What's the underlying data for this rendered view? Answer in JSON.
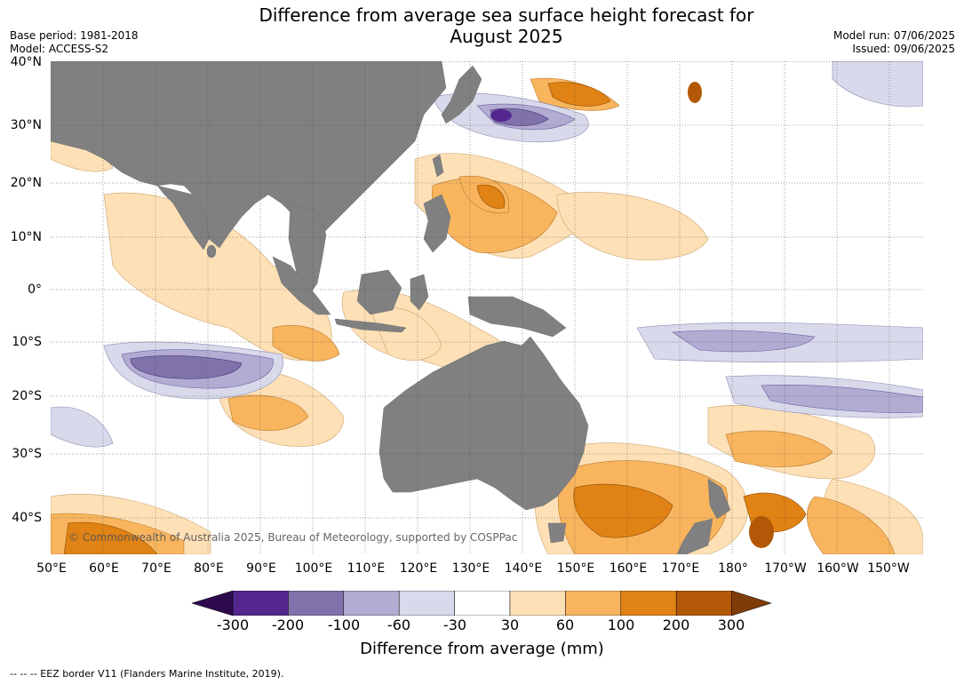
{
  "title": {
    "line1": "Difference from average sea surface height forecast for",
    "line2": "August 2025"
  },
  "meta": {
    "base_period": "Base period: 1981-2018",
    "model": "Model: ACCESS-S2",
    "model_run": "Model run: 07/06/2025",
    "issued": "Issued: 09/06/2025"
  },
  "lat_labels": [
    "40°N",
    "30°N",
    "20°N",
    "10°N",
    "0°",
    "10°S",
    "20°S",
    "30°S",
    "40°S"
  ],
  "lon_labels": [
    "50°E",
    "60°E",
    "70°E",
    "80°E",
    "90°E",
    "100°E",
    "110°E",
    "120°E",
    "130°E",
    "140°E",
    "150°E",
    "160°E",
    "170°E",
    "180°",
    "170°W",
    "160°W",
    "150°W"
  ],
  "copyright": "© Commonwealth of Australia 2025, Bureau of Meteorology, supported by COSPPac",
  "colorbar": {
    "labels": [
      "-300",
      "-200",
      "-100",
      "-60",
      "-30",
      "30",
      "60",
      "100",
      "200",
      "300"
    ],
    "colors": [
      "#2d0a4e",
      "#54278f",
      "#8073ac",
      "#b2abd2",
      "#d8daeb",
      "#ffffff",
      "#fee0b6",
      "#f8b55e",
      "#e08214",
      "#b35806",
      "#7f3b08"
    ],
    "title": "Difference from average (mm)"
  },
  "footer": "--  --  -- EEZ border V11 (Flanders Marine Institute, 2019).",
  "map_colors": {
    "land": "#808080",
    "ocean": "#ffffff",
    "gridline": "#444444"
  }
}
